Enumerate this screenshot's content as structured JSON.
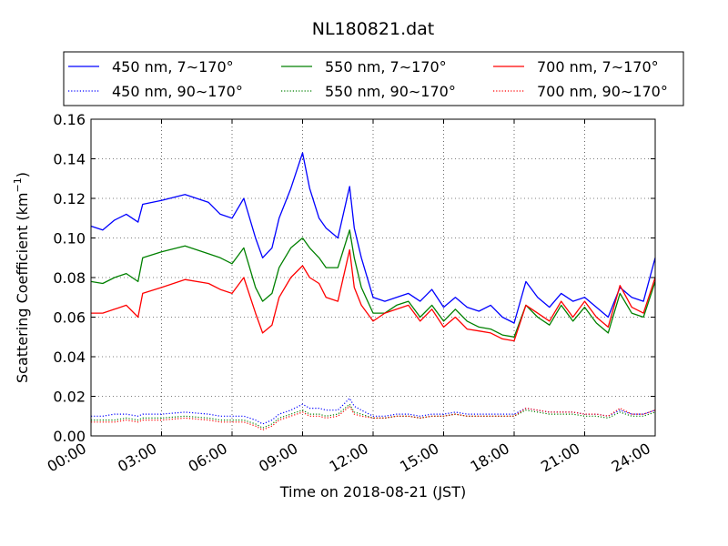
{
  "chart_data": {
    "type": "line",
    "title": "NL180821.dat",
    "xlabel": "Time on 2018-08-21 (JST)",
    "ylabel_main": "Scattering Coefficient (km",
    "ylabel_sup": "−1",
    "ylabel_close": ")",
    "xlim": [
      0,
      24
    ],
    "ylim": [
      0,
      0.16
    ],
    "x_ticks": [
      0,
      3,
      6,
      9,
      12,
      15,
      18,
      21,
      24
    ],
    "x_tick_labels": [
      "00:00",
      "03:00",
      "06:00",
      "09:00",
      "12:00",
      "15:00",
      "18:00",
      "21:00",
      "24:00"
    ],
    "y_ticks": [
      0,
      0.02,
      0.04,
      0.06,
      0.08,
      0.1,
      0.12,
      0.14,
      0.16
    ],
    "y_tick_labels": [
      "0.00",
      "0.02",
      "0.04",
      "0.06",
      "0.08",
      "0.10",
      "0.12",
      "0.14",
      "0.16"
    ],
    "grid": true,
    "legend_position": "top-outside",
    "x": [
      0,
      0.5,
      1,
      1.5,
      2,
      2.2,
      3,
      4,
      5,
      5.5,
      6,
      6.5,
      7,
      7.3,
      7.7,
      8,
      8.5,
      9,
      9.3,
      9.7,
      10,
      10.5,
      11,
      11.2,
      11.5,
      12,
      12.5,
      13,
      13.5,
      14,
      14.5,
      15,
      15.5,
      16,
      16.5,
      17,
      17.5,
      18,
      18.5,
      19,
      19.5,
      20,
      20.5,
      21,
      21.5,
      22,
      22.5,
      23,
      23.5,
      24
    ],
    "series": [
      {
        "name": "450 nm, 7∼170°",
        "color": "#0000ff",
        "style": "solid",
        "values": [
          0.106,
          0.104,
          0.109,
          0.112,
          0.108,
          0.117,
          0.119,
          0.122,
          0.118,
          0.112,
          0.11,
          0.12,
          0.1,
          0.09,
          0.095,
          0.11,
          0.125,
          0.143,
          0.125,
          0.11,
          0.105,
          0.1,
          0.126,
          0.105,
          0.09,
          0.07,
          0.068,
          0.07,
          0.072,
          0.068,
          0.074,
          0.065,
          0.07,
          0.065,
          0.063,
          0.066,
          0.06,
          0.057,
          0.078,
          0.07,
          0.065,
          0.072,
          0.068,
          0.07,
          0.065,
          0.06,
          0.075,
          0.07,
          0.068,
          0.09
        ]
      },
      {
        "name": "450 nm, 90∼170°",
        "color": "#0000ff",
        "style": "dotted",
        "values": [
          0.01,
          0.01,
          0.011,
          0.011,
          0.01,
          0.011,
          0.011,
          0.012,
          0.011,
          0.01,
          0.01,
          0.01,
          0.008,
          0.006,
          0.008,
          0.011,
          0.013,
          0.016,
          0.014,
          0.014,
          0.013,
          0.013,
          0.019,
          0.015,
          0.013,
          0.01,
          0.01,
          0.011,
          0.011,
          0.01,
          0.011,
          0.011,
          0.012,
          0.011,
          0.011,
          0.011,
          0.011,
          0.011,
          0.014,
          0.013,
          0.012,
          0.012,
          0.012,
          0.011,
          0.011,
          0.01,
          0.013,
          0.011,
          0.011,
          0.013
        ]
      },
      {
        "name": "550 nm, 7∼170°",
        "color": "#008000",
        "style": "solid",
        "values": [
          0.078,
          0.077,
          0.08,
          0.082,
          0.078,
          0.09,
          0.093,
          0.096,
          0.092,
          0.09,
          0.087,
          0.095,
          0.075,
          0.068,
          0.072,
          0.085,
          0.095,
          0.1,
          0.095,
          0.09,
          0.085,
          0.085,
          0.104,
          0.09,
          0.075,
          0.062,
          0.062,
          0.066,
          0.068,
          0.06,
          0.066,
          0.058,
          0.064,
          0.058,
          0.055,
          0.054,
          0.051,
          0.05,
          0.066,
          0.06,
          0.056,
          0.066,
          0.058,
          0.065,
          0.057,
          0.052,
          0.072,
          0.062,
          0.06,
          0.078
        ]
      },
      {
        "name": "550 nm, 90∼170°",
        "color": "#008000",
        "style": "dotted",
        "values": [
          0.008,
          0.008,
          0.008,
          0.009,
          0.008,
          0.009,
          0.009,
          0.01,
          0.009,
          0.008,
          0.008,
          0.008,
          0.006,
          0.004,
          0.006,
          0.009,
          0.011,
          0.013,
          0.011,
          0.011,
          0.01,
          0.011,
          0.016,
          0.012,
          0.011,
          0.009,
          0.009,
          0.01,
          0.01,
          0.009,
          0.01,
          0.01,
          0.011,
          0.01,
          0.01,
          0.01,
          0.01,
          0.01,
          0.013,
          0.012,
          0.011,
          0.011,
          0.011,
          0.01,
          0.01,
          0.009,
          0.012,
          0.01,
          0.01,
          0.012
        ]
      },
      {
        "name": "700 nm, 7∼170°",
        "color": "#ff0000",
        "style": "solid",
        "values": [
          0.062,
          0.062,
          0.064,
          0.066,
          0.06,
          0.072,
          0.075,
          0.079,
          0.077,
          0.074,
          0.072,
          0.08,
          0.062,
          0.052,
          0.056,
          0.07,
          0.08,
          0.086,
          0.08,
          0.077,
          0.07,
          0.068,
          0.094,
          0.075,
          0.066,
          0.058,
          0.062,
          0.064,
          0.066,
          0.058,
          0.064,
          0.055,
          0.06,
          0.054,
          0.053,
          0.052,
          0.049,
          0.048,
          0.066,
          0.062,
          0.058,
          0.068,
          0.06,
          0.068,
          0.06,
          0.055,
          0.076,
          0.065,
          0.062,
          0.08
        ]
      },
      {
        "name": "700 nm, 90∼170°",
        "color": "#ff0000",
        "style": "dotted",
        "values": [
          0.007,
          0.007,
          0.007,
          0.008,
          0.007,
          0.008,
          0.008,
          0.009,
          0.008,
          0.007,
          0.007,
          0.007,
          0.005,
          0.003,
          0.005,
          0.008,
          0.01,
          0.012,
          0.01,
          0.01,
          0.009,
          0.01,
          0.015,
          0.011,
          0.01,
          0.009,
          0.009,
          0.01,
          0.01,
          0.009,
          0.01,
          0.01,
          0.011,
          0.01,
          0.01,
          0.01,
          0.01,
          0.01,
          0.014,
          0.013,
          0.012,
          0.012,
          0.012,
          0.011,
          0.011,
          0.01,
          0.014,
          0.011,
          0.011,
          0.013
        ]
      }
    ]
  }
}
